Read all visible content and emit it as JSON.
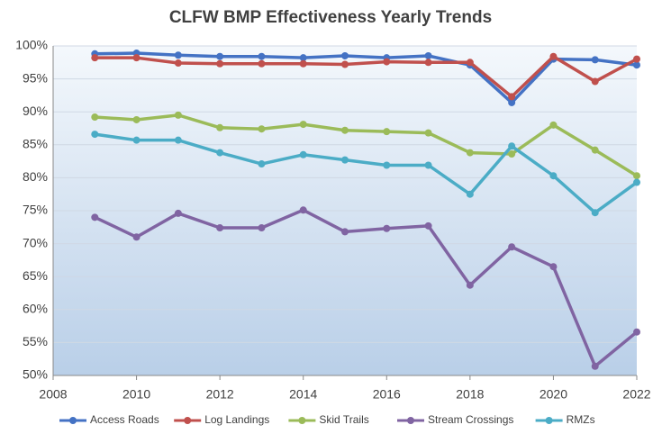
{
  "chart_data": {
    "type": "line",
    "title": "CLFW BMP Effectiveness Yearly Trends",
    "x": [
      2009,
      2010,
      2011,
      2012,
      2013,
      2014,
      2015,
      2016,
      2017,
      2018,
      2019,
      2020,
      2021,
      2022
    ],
    "series": [
      {
        "name": "Access Roads",
        "color": "#4472c4",
        "values": [
          98.8,
          98.9,
          98.6,
          98.4,
          98.4,
          98.2,
          98.5,
          98.2,
          98.5,
          97.1,
          91.4,
          98.0,
          97.9,
          97.1
        ]
      },
      {
        "name": "Log Landings",
        "color": "#c0504d",
        "values": [
          98.2,
          98.2,
          97.4,
          97.3,
          97.3,
          97.3,
          97.2,
          97.6,
          97.5,
          97.5,
          92.3,
          98.4,
          94.6,
          98.0
        ]
      },
      {
        "name": "Skid Trails",
        "color": "#9bbb59",
        "values": [
          89.2,
          88.8,
          89.5,
          87.6,
          87.4,
          88.1,
          87.2,
          87.0,
          86.8,
          83.8,
          83.6,
          88.0,
          84.2,
          80.3
        ]
      },
      {
        "name": "Stream Crossings",
        "color": "#8064a2",
        "values": [
          74.0,
          71.0,
          74.6,
          72.4,
          72.4,
          75.1,
          71.8,
          72.3,
          72.7,
          63.7,
          69.5,
          66.5,
          51.4,
          56.6
        ]
      },
      {
        "name": "RMZs",
        "color": "#4bacc6",
        "values": [
          86.6,
          85.7,
          85.7,
          83.8,
          82.1,
          83.5,
          82.7,
          81.9,
          81.9,
          77.5,
          84.8,
          80.3,
          74.7,
          79.3
        ]
      }
    ],
    "xlim": [
      2008,
      2022
    ],
    "xticks": [
      2008,
      2010,
      2012,
      2014,
      2016,
      2018,
      2020,
      2022
    ],
    "ylim": [
      50,
      100
    ],
    "yticks": [
      {
        "value": 50,
        "label": "50%"
      },
      {
        "value": 55,
        "label": "55%"
      },
      {
        "value": 60,
        "label": "60%"
      },
      {
        "value": 65,
        "label": "65%"
      },
      {
        "value": 70,
        "label": "70%"
      },
      {
        "value": 75,
        "label": "75%"
      },
      {
        "value": 80,
        "label": "80%"
      },
      {
        "value": 85,
        "label": "85%"
      },
      {
        "value": 90,
        "label": "90%"
      },
      {
        "value": 95,
        "label": "95%"
      },
      {
        "value": 100,
        "label": "100%"
      }
    ],
    "grid": true,
    "legend": "bottom"
  }
}
